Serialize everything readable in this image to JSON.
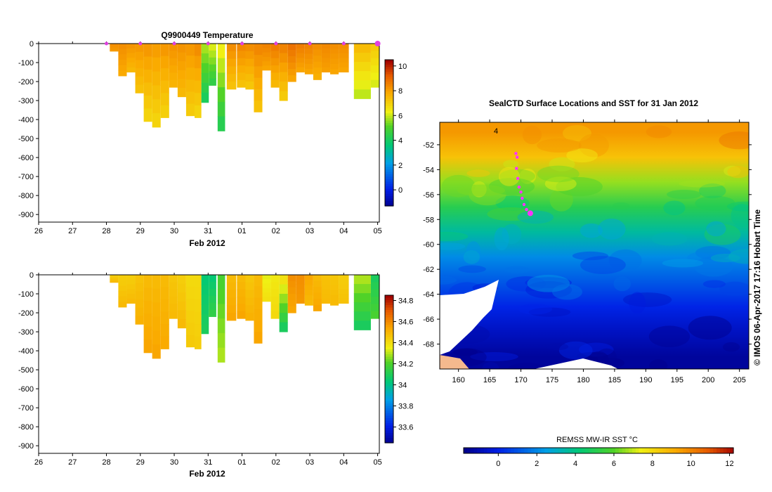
{
  "chart_data": [
    {
      "type": "heatmap",
      "title": "Q9900449  Temperature",
      "xlabel": "Feb 2012",
      "x_ticks": [
        "26",
        "27",
        "28",
        "29",
        "30",
        "31",
        "01",
        "02",
        "03",
        "04",
        "05"
      ],
      "y_ticks": [
        0,
        -100,
        -200,
        -300,
        -400,
        -500,
        -600,
        -700,
        -800,
        -900
      ],
      "ylim": [
        -940,
        0
      ],
      "xlim": [
        26,
        36.05
      ],
      "colorbar_ticks": [
        10,
        8,
        6,
        4,
        2,
        0
      ],
      "colorbar_range": [
        -1.3,
        10.5
      ],
      "profile_markers": [
        28,
        29,
        30,
        31,
        32,
        33,
        34,
        35,
        36
      ],
      "profiles": [
        {
          "x": 28.1,
          "w": 0.25,
          "depth": -40,
          "surf": 8.4,
          "deep": 8.2
        },
        {
          "x": 28.35,
          "w": 0.25,
          "depth": -170,
          "surf": 8.4,
          "deep": 7.9
        },
        {
          "x": 28.6,
          "w": 0.25,
          "depth": -150,
          "surf": 8.3,
          "deep": 7.6
        },
        {
          "x": 28.85,
          "w": 0.25,
          "depth": -260,
          "surf": 8.2,
          "deep": 7.4
        },
        {
          "x": 29.1,
          "w": 0.25,
          "depth": -410,
          "surf": 8.2,
          "deep": 7.0
        },
        {
          "x": 29.35,
          "w": 0.25,
          "depth": -440,
          "surf": 8.1,
          "deep": 7.0
        },
        {
          "x": 29.6,
          "w": 0.25,
          "depth": -390,
          "surf": 8.2,
          "deep": 7.1
        },
        {
          "x": 29.85,
          "w": 0.25,
          "depth": -230,
          "surf": 8.3,
          "deep": 7.7
        },
        {
          "x": 30.1,
          "w": 0.25,
          "depth": -280,
          "surf": 8.3,
          "deep": 7.6
        },
        {
          "x": 30.35,
          "w": 0.25,
          "depth": -380,
          "surf": 8.2,
          "deep": 7.2
        },
        {
          "x": 30.6,
          "w": 0.2,
          "depth": -390,
          "surf": 8.4,
          "deep": 7.0
        },
        {
          "x": 30.8,
          "w": 0.22,
          "depth": -310,
          "surf": 5.8,
          "deep": 4.2
        },
        {
          "x": 31.02,
          "w": 0.22,
          "depth": -220,
          "surf": 6.2,
          "deep": 4.6
        },
        {
          "x": 31.28,
          "w": 0.22,
          "depth": -460,
          "surf": 6.4,
          "deep": 4.4
        },
        {
          "x": 31.55,
          "w": 0.28,
          "depth": -240,
          "surf": 8.4,
          "deep": 7.4
        },
        {
          "x": 31.85,
          "w": 0.28,
          "depth": -230,
          "surf": 8.5,
          "deep": 7.4
        },
        {
          "x": 32.1,
          "w": 0.25,
          "depth": -240,
          "surf": 8.4,
          "deep": 7.3
        },
        {
          "x": 32.35,
          "w": 0.25,
          "depth": -360,
          "surf": 8.5,
          "deep": 7.4
        },
        {
          "x": 32.6,
          "w": 0.25,
          "depth": -140,
          "surf": 8.6,
          "deep": 8.0
        },
        {
          "x": 32.85,
          "w": 0.25,
          "depth": -230,
          "surf": 8.7,
          "deep": 7.6
        },
        {
          "x": 33.1,
          "w": 0.25,
          "depth": -300,
          "surf": 8.6,
          "deep": 7.2
        },
        {
          "x": 33.35,
          "w": 0.25,
          "depth": -200,
          "surf": 8.9,
          "deep": 8.0
        },
        {
          "x": 33.6,
          "w": 0.25,
          "depth": -150,
          "surf": 8.7,
          "deep": 8.0
        },
        {
          "x": 33.85,
          "w": 0.25,
          "depth": -160,
          "surf": 8.6,
          "deep": 8.0
        },
        {
          "x": 34.1,
          "w": 0.25,
          "depth": -190,
          "surf": 8.4,
          "deep": 7.8
        },
        {
          "x": 34.35,
          "w": 0.25,
          "depth": -150,
          "surf": 8.5,
          "deep": 8.1
        },
        {
          "x": 34.6,
          "w": 0.25,
          "depth": -160,
          "surf": 8.4,
          "deep": 8.0
        },
        {
          "x": 34.85,
          "w": 0.3,
          "depth": -150,
          "surf": 8.4,
          "deep": 8.0
        },
        {
          "x": 35.3,
          "w": 0.5,
          "depth": -290,
          "surf": 7.5,
          "deep": 6.0
        },
        {
          "x": 35.8,
          "w": 0.25,
          "depth": -230,
          "surf": 7.2,
          "deep": 6.2
        }
      ]
    },
    {
      "type": "heatmap",
      "title": "",
      "xlabel": "Feb 2012",
      "x_ticks": [
        "26",
        "27",
        "28",
        "29",
        "30",
        "31",
        "01",
        "02",
        "03",
        "04",
        "05"
      ],
      "y_ticks": [
        0,
        -100,
        -200,
        -300,
        -400,
        -500,
        -600,
        -700,
        -800,
        -900
      ],
      "ylim": [
        -940,
        0
      ],
      "xlim": [
        26,
        36.05
      ],
      "colorbar_ticks": [
        34.8,
        34.6,
        34.4,
        34.2,
        34,
        33.8,
        33.6
      ],
      "colorbar_range": [
        33.45,
        34.85
      ],
      "profiles": [
        {
          "x": 28.1,
          "w": 0.25,
          "depth": -40,
          "surf": 34.45,
          "deep": 34.5
        },
        {
          "x": 28.35,
          "w": 0.25,
          "depth": -170,
          "surf": 34.45,
          "deep": 34.5
        },
        {
          "x": 28.6,
          "w": 0.25,
          "depth": -150,
          "surf": 34.45,
          "deep": 34.5
        },
        {
          "x": 28.85,
          "w": 0.25,
          "depth": -260,
          "surf": 34.48,
          "deep": 34.52
        },
        {
          "x": 29.1,
          "w": 0.25,
          "depth": -410,
          "surf": 34.5,
          "deep": 34.55
        },
        {
          "x": 29.35,
          "w": 0.25,
          "depth": -440,
          "surf": 34.5,
          "deep": 34.55
        },
        {
          "x": 29.6,
          "w": 0.25,
          "depth": -390,
          "surf": 34.5,
          "deep": 34.54
        },
        {
          "x": 29.85,
          "w": 0.25,
          "depth": -230,
          "surf": 34.47,
          "deep": 34.5
        },
        {
          "x": 30.1,
          "w": 0.25,
          "depth": -280,
          "surf": 34.45,
          "deep": 34.5
        },
        {
          "x": 30.35,
          "w": 0.25,
          "depth": -380,
          "surf": 34.42,
          "deep": 34.46
        },
        {
          "x": 30.6,
          "w": 0.2,
          "depth": -390,
          "surf": 34.42,
          "deep": 34.45
        },
        {
          "x": 30.8,
          "w": 0.22,
          "depth": -310,
          "surf": 34.05,
          "deep": 34.1
        },
        {
          "x": 31.02,
          "w": 0.22,
          "depth": -220,
          "surf": 34.05,
          "deep": 34.15
        },
        {
          "x": 31.28,
          "w": 0.22,
          "depth": -460,
          "surf": 34.2,
          "deep": 34.3
        },
        {
          "x": 31.55,
          "w": 0.28,
          "depth": -240,
          "surf": 34.5,
          "deep": 34.55
        },
        {
          "x": 31.85,
          "w": 0.28,
          "depth": -230,
          "surf": 34.5,
          "deep": 34.55
        },
        {
          "x": 32.1,
          "w": 0.25,
          "depth": -240,
          "surf": 34.47,
          "deep": 34.52
        },
        {
          "x": 32.35,
          "w": 0.25,
          "depth": -360,
          "surf": 34.5,
          "deep": 34.55
        },
        {
          "x": 32.6,
          "w": 0.25,
          "depth": -140,
          "surf": 34.35,
          "deep": 34.4
        },
        {
          "x": 32.85,
          "w": 0.25,
          "depth": -230,
          "surf": 34.38,
          "deep": 34.42
        },
        {
          "x": 33.1,
          "w": 0.25,
          "depth": -300,
          "surf": 34.4,
          "deep": 34.1
        },
        {
          "x": 33.35,
          "w": 0.25,
          "depth": -200,
          "surf": 34.6,
          "deep": 34.55
        },
        {
          "x": 33.6,
          "w": 0.25,
          "depth": -150,
          "surf": 34.6,
          "deep": 34.58
        },
        {
          "x": 33.85,
          "w": 0.25,
          "depth": -160,
          "surf": 34.55,
          "deep": 34.5
        },
        {
          "x": 34.1,
          "w": 0.25,
          "depth": -190,
          "surf": 34.5,
          "deep": 34.55
        },
        {
          "x": 34.35,
          "w": 0.25,
          "depth": -150,
          "surf": 34.48,
          "deep": 34.5
        },
        {
          "x": 34.6,
          "w": 0.25,
          "depth": -160,
          "surf": 34.47,
          "deep": 34.5
        },
        {
          "x": 34.85,
          "w": 0.3,
          "depth": -150,
          "surf": 34.45,
          "deep": 34.48
        },
        {
          "x": 35.3,
          "w": 0.5,
          "depth": -290,
          "surf": 34.3,
          "deep": 34.1
        },
        {
          "x": 35.8,
          "w": 0.25,
          "depth": -230,
          "surf": 34.1,
          "deep": 34.2
        }
      ]
    },
    {
      "type": "heatmap",
      "title": "SealCTD Surface Locations and SST for 31 Jan 2012",
      "xlabel": "",
      "x_ticks": [
        160,
        165,
        170,
        175,
        180,
        185,
        190,
        195,
        200,
        205
      ],
      "y_ticks": [
        -52,
        -54,
        -56,
        -58,
        -60,
        -62,
        -64,
        -66,
        -68
      ],
      "xlim": [
        157,
        206.5
      ],
      "ylim": [
        -70,
        -50.2
      ],
      "colorbar_title": "REMSS MW-IR SST °C",
      "colorbar_ticks": [
        0,
        2,
        4,
        6,
        8,
        10,
        12
      ],
      "colorbar_range": [
        -1.8,
        12.2
      ],
      "map_label": "4",
      "track": [
        [
          169.2,
          -52.7
        ],
        [
          169.4,
          -53.0
        ],
        [
          169.3,
          -53.9
        ],
        [
          169.5,
          -54.7
        ],
        [
          169.7,
          -55.4
        ],
        [
          170.0,
          -55.8
        ],
        [
          170.2,
          -56.3
        ],
        [
          170.5,
          -56.8
        ],
        [
          170.9,
          -57.2
        ],
        [
          171.5,
          -57.5
        ]
      ],
      "sst_profile": [
        {
          "lat": -51,
          "sst": 9.5
        },
        {
          "lat": -53,
          "sst": 8.5
        },
        {
          "lat": -55,
          "sst": 6.5
        },
        {
          "lat": -57,
          "sst": 5.0
        },
        {
          "lat": -59,
          "sst": 3.5
        },
        {
          "lat": -61,
          "sst": 2.0
        },
        {
          "lat": -63,
          "sst": 1.0
        },
        {
          "lat": -65,
          "sst": 0.0
        },
        {
          "lat": -67,
          "sst": -0.8
        },
        {
          "lat": -69,
          "sst": -1.5
        }
      ],
      "side_label": "©  IMOS 06-Apr-2017 17:16 Hobart Time"
    }
  ]
}
